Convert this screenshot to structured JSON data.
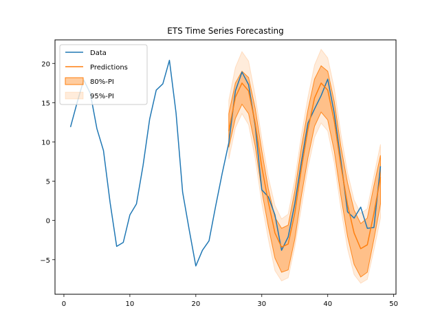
{
  "chart_data": {
    "type": "line",
    "title": "ETS Time Series Forecasting",
    "xlabel": "",
    "ylabel": "",
    "xlim": [
      -1.35,
      50.35
    ],
    "ylim": [
      -9.4,
      23.0
    ],
    "xticks": [
      0,
      10,
      20,
      30,
      40,
      50
    ],
    "yticks": [
      -5,
      0,
      5,
      10,
      15,
      20
    ],
    "grid": false,
    "legend_position": "top-left",
    "colors": {
      "data": "#1f77b4",
      "predictions": "#ff7f0e",
      "pi80": "#ff7f0e",
      "pi95": "#ff7f0e"
    },
    "legend": {
      "data": "Data",
      "predictions": "Predictions",
      "pi80": "80%-PI",
      "pi95": "95%-PI"
    },
    "series": [
      {
        "key": "data",
        "name": "Data",
        "x": [
          1,
          2,
          3,
          4,
          5,
          6,
          7,
          8,
          9,
          10,
          11,
          12,
          13,
          14,
          15,
          16,
          17,
          18,
          19,
          20,
          21,
          22,
          23,
          24,
          25,
          26,
          27,
          28,
          29,
          30,
          31,
          32,
          33,
          34,
          35,
          36,
          37,
          38,
          39,
          40,
          41,
          42,
          43,
          44,
          45,
          46,
          47,
          48
        ],
        "y": [
          11.9,
          15.0,
          17.9,
          16.2,
          11.7,
          8.9,
          2.3,
          -3.3,
          -2.8,
          0.7,
          2.1,
          7.0,
          12.9,
          16.6,
          17.4,
          20.4,
          13.7,
          3.6,
          -1.2,
          -5.8,
          -3.8,
          -2.6,
          1.8,
          6.0,
          9.9,
          16.5,
          18.9,
          17.3,
          12.1,
          3.9,
          3.0,
          0.7,
          -3.8,
          -2.1,
          2.1,
          7.4,
          12.4,
          14.2,
          15.9,
          18.0,
          13.6,
          7.6,
          1.1,
          0.3,
          1.7,
          -1.0,
          -0.9,
          6.9
        ]
      },
      {
        "key": "predictions",
        "name": "Predictions",
        "x": [
          25,
          26,
          27,
          28,
          29,
          30,
          31,
          32,
          33,
          34,
          35,
          36,
          37,
          38,
          39,
          40,
          41,
          42,
          43,
          44,
          45,
          46,
          47,
          48
        ],
        "y": [
          11.4,
          15.7,
          17.5,
          16.5,
          12.4,
          6.8,
          2.3,
          -1.6,
          -3.4,
          -3.0,
          0.9,
          6.6,
          11.6,
          15.6,
          17.5,
          16.6,
          12.6,
          7.0,
          2.0,
          -1.6,
          -3.6,
          -3.1,
          0.9,
          5.5
        ],
        "pi80_lower": [
          9.3,
          13.0,
          14.8,
          13.6,
          9.5,
          3.8,
          -0.8,
          -4.8,
          -6.6,
          -6.3,
          -2.4,
          3.1,
          8.0,
          12.0,
          13.8,
          12.8,
          8.8,
          3.1,
          -2.0,
          -5.6,
          -7.2,
          -6.6,
          -2.4,
          2.1
        ],
        "pi80_upper": [
          13.6,
          17.5,
          19.0,
          18.2,
          14.3,
          8.9,
          4.0,
          0.4,
          -1.0,
          -0.6,
          3.7,
          9.3,
          14.1,
          18.0,
          19.7,
          19.0,
          15.1,
          9.4,
          4.8,
          1.3,
          -0.4,
          0.3,
          4.4,
          8.3
        ],
        "pi95_lower": [
          7.8,
          11.8,
          13.6,
          12.2,
          7.9,
          2.2,
          -2.4,
          -6.4,
          -7.7,
          -7.3,
          -3.4,
          1.6,
          6.7,
          10.6,
          12.4,
          11.4,
          7.3,
          1.5,
          -3.6,
          -6.9,
          -8.0,
          -7.5,
          -3.8,
          0.3
        ],
        "pi95_upper": [
          15.3,
          19.5,
          21.5,
          20.3,
          15.9,
          10.4,
          5.5,
          1.9,
          0.2,
          0.8,
          5.2,
          10.8,
          15.7,
          19.8,
          21.8,
          20.7,
          16.8,
          11.0,
          6.1,
          2.6,
          0.9,
          1.5,
          5.7,
          9.7
        ]
      }
    ]
  }
}
